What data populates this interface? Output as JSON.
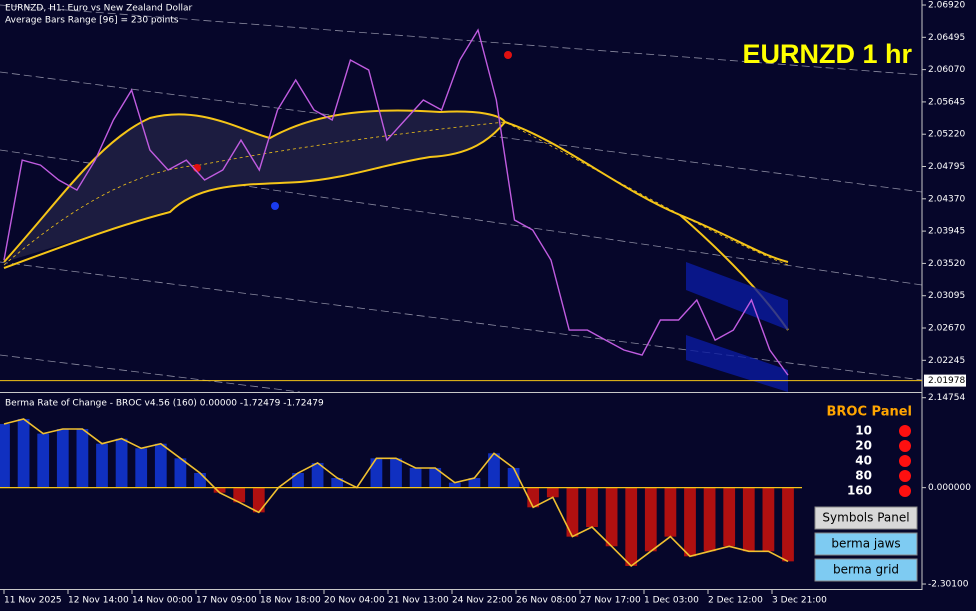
{
  "header": {
    "symbol_line": "EURNZD, H1:  Euro vs New Zealand Dollar",
    "range_line": "Average Bars Range [96] = 230 points"
  },
  "watermark": "EURNZD 1 hr",
  "main_chart": {
    "type": "line",
    "color": "#c05ce0",
    "values": [
      2.03564,
      2.0488,
      2.04814,
      2.04617,
      2.04485,
      2.0488,
      2.05407,
      2.05801,
      2.05012,
      2.04749,
      2.0488,
      2.04617,
      2.04749,
      2.05143,
      2.04749,
      2.05538,
      2.05933,
      2.05538,
      2.05407,
      2.06196,
      2.06065,
      2.05143,
      2.05407,
      2.0567,
      2.05538,
      2.06196,
      2.06591,
      2.0567,
      2.04091,
      2.03959,
      2.03564,
      2.02643,
      2.02643,
      2.02511,
      2.0238,
      2.02314,
      2.02775,
      2.02775,
      2.03038,
      2.02511,
      2.02643,
      2.03038,
      2.0238,
      2.02051
    ],
    "ylim": [
      2.01828,
      2.06986
    ],
    "yticks": [
      {
        "value": 2.0692,
        "label": "2.06920"
      },
      2.06495,
      {
        "value": 2.0607,
        "label": "2.06070"
      },
      2.05645,
      {
        "value": 2.0522,
        "label": "2.05220"
      },
      2.04795,
      {
        "value": 2.0437,
        "label": "2.04370"
      },
      2.03945,
      {
        "value": 2.0352,
        "label": "2.03520"
      },
      2.03095,
      {
        "value": 2.0267,
        "label": "2.02670"
      },
      2.02245
    ],
    "current_price": 2.01978
  },
  "indicator": {
    "type": "line",
    "title": "Berma Rate of Change - BROC v4.56 (160) 0.00000 -1.72479 -1.72479",
    "color": "#f0c030",
    "positive_color": "#1030c0",
    "negative_color": "#b01010",
    "values": [
      1.52,
      1.64,
      1.29,
      1.4,
      1.4,
      1.05,
      1.17,
      0.94,
      1.05,
      0.7,
      0.35,
      -0.12,
      -0.35,
      -0.59,
      0,
      0.35,
      0.59,
      0.23,
      0,
      0.7,
      0.7,
      0.47,
      0.47,
      0.12,
      0.23,
      0.82,
      0.47,
      -0.47,
      -0.23,
      -1.17,
      -0.94,
      -1.4,
      -1.87,
      -1.52,
      -1.17,
      -1.64,
      -1.52,
      -1.4,
      -1.52,
      -1.52,
      -1.76
    ],
    "ylim": [
      -2.42,
      2.26
    ],
    "yticks": [
      2.14754,
      {
        "value": 0,
        "label": "0.000000"
      },
      {
        "value": -2.301,
        "label": "-2.30100"
      }
    ]
  },
  "time_labels": [
    "11 Nov 2025",
    "12 Nov 14:00",
    "14 Nov 00:00",
    "17 Nov 09:00",
    "18 Nov 18:00",
    "20 Nov 04:00",
    "21 Nov 13:00",
    "24 Nov 22:00",
    "26 Nov 08:00",
    "27 Nov 17:00",
    "1 Dec 03:00",
    "2 Dec 12:00",
    "3 Dec 21:00"
  ],
  "broc_panel": {
    "title": "BROC Panel",
    "periods": [
      "10",
      "20",
      "40",
      "80",
      "160"
    ]
  },
  "buttons": [
    "Symbols Panel",
    "berma jaws",
    "berma grid"
  ]
}
